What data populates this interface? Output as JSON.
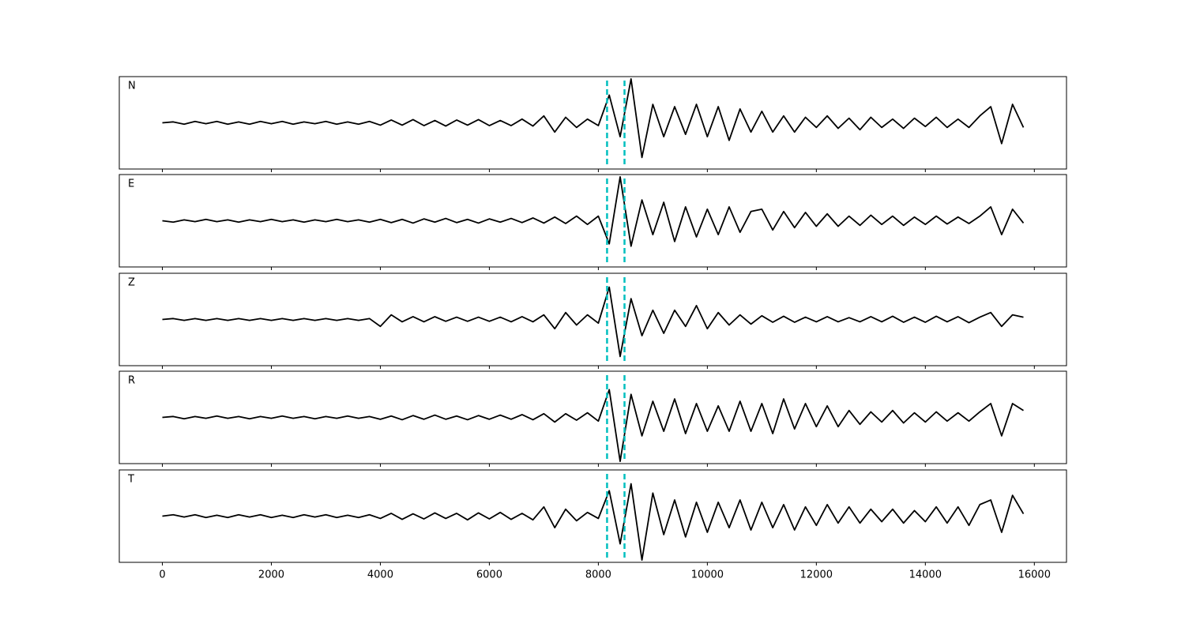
{
  "chart_data": {
    "type": "line",
    "x": [
      0,
      200,
      400,
      600,
      800,
      1000,
      1200,
      1400,
      1600,
      1800,
      2000,
      2200,
      2400,
      2600,
      2800,
      3000,
      3200,
      3400,
      3600,
      3800,
      4000,
      4200,
      4400,
      4600,
      4800,
      5000,
      5200,
      5400,
      5600,
      5800,
      6000,
      6200,
      6400,
      6600,
      6800,
      7000,
      7200,
      7400,
      7600,
      7800,
      8000,
      8200,
      8400,
      8600,
      8800,
      9000,
      9200,
      9400,
      9600,
      9800,
      10000,
      10200,
      10400,
      10600,
      10800,
      11000,
      11200,
      11400,
      11600,
      11800,
      12000,
      12200,
      12400,
      12600,
      12800,
      13000,
      13200,
      13400,
      13600,
      13800,
      14000,
      14200,
      14400,
      14600,
      14800,
      15000,
      15200,
      15400,
      15600,
      15800
    ],
    "series": [
      {
        "name": "N",
        "color": "#000000",
        "values": [
          0,
          0.02,
          -0.03,
          0.03,
          -0.02,
          0.03,
          -0.03,
          0.02,
          -0.03,
          0.03,
          -0.02,
          0.03,
          -0.03,
          0.02,
          -0.02,
          0.03,
          -0.03,
          0.02,
          -0.03,
          0.03,
          -0.05,
          0.06,
          -0.05,
          0.07,
          -0.06,
          0.05,
          -0.07,
          0.06,
          -0.05,
          0.07,
          -0.06,
          0.05,
          -0.06,
          0.08,
          -0.07,
          0.15,
          -0.2,
          0.12,
          -0.1,
          0.08,
          -0.06,
          0.6,
          -0.3,
          0.95,
          -0.75,
          0.4,
          -0.3,
          0.35,
          -0.25,
          0.4,
          -0.3,
          0.35,
          -0.38,
          0.3,
          -0.2,
          0.25,
          -0.2,
          0.15,
          -0.2,
          0.12,
          -0.1,
          0.15,
          -0.12,
          0.1,
          -0.15,
          0.12,
          -0.1,
          0.08,
          -0.12,
          0.1,
          -0.08,
          0.12,
          -0.1,
          0.08,
          -0.1,
          0.15,
          0.35,
          -0.45,
          0.4,
          -0.1
        ]
      },
      {
        "name": "E",
        "color": "#000000",
        "values": [
          0,
          -0.03,
          0.02,
          -0.02,
          0.03,
          -0.02,
          0.02,
          -0.03,
          0.02,
          -0.02,
          0.03,
          -0.02,
          0.02,
          -0.03,
          0.02,
          -0.02,
          0.03,
          -0.02,
          0.02,
          -0.03,
          0.03,
          -0.04,
          0.03,
          -0.05,
          0.04,
          -0.03,
          0.05,
          -0.04,
          0.03,
          -0.05,
          0.04,
          -0.03,
          0.05,
          -0.04,
          0.06,
          -0.05,
          0.08,
          -0.06,
          0.1,
          -0.08,
          0.1,
          -0.5,
          0.95,
          -0.55,
          0.45,
          -0.3,
          0.4,
          -0.45,
          0.3,
          -0.35,
          0.25,
          -0.3,
          0.3,
          -0.25,
          0.2,
          0.25,
          -0.2,
          0.2,
          -0.15,
          0.18,
          -0.12,
          0.15,
          -0.12,
          0.1,
          -0.1,
          0.12,
          -0.08,
          0.1,
          -0.1,
          0.08,
          -0.08,
          0.1,
          -0.07,
          0.08,
          -0.06,
          0.1,
          0.3,
          -0.3,
          0.25,
          -0.05
        ]
      },
      {
        "name": "Z",
        "color": "#000000",
        "values": [
          0,
          0.02,
          -0.02,
          0.02,
          -0.02,
          0.02,
          -0.02,
          0.02,
          -0.02,
          0.02,
          -0.02,
          0.02,
          -0.02,
          0.02,
          -0.02,
          0.02,
          -0.02,
          0.02,
          -0.02,
          0.02,
          -0.15,
          0.1,
          -0.05,
          0.06,
          -0.05,
          0.06,
          -0.04,
          0.05,
          -0.04,
          0.05,
          -0.04,
          0.05,
          -0.05,
          0.06,
          -0.05,
          0.1,
          -0.2,
          0.15,
          -0.12,
          0.1,
          -0.08,
          0.7,
          -0.8,
          0.45,
          -0.35,
          0.2,
          -0.3,
          0.2,
          -0.15,
          0.3,
          -0.2,
          0.15,
          -0.12,
          0.1,
          -0.1,
          0.08,
          -0.06,
          0.07,
          -0.06,
          0.05,
          -0.05,
          0.06,
          -0.05,
          0.04,
          -0.05,
          0.06,
          -0.05,
          0.07,
          -0.06,
          0.05,
          -0.06,
          0.07,
          -0.05,
          0.06,
          -0.07,
          0.05,
          0.15,
          -0.15,
          0.1,
          0.05
        ]
      },
      {
        "name": "R",
        "color": "#000000",
        "values": [
          0,
          0.02,
          -0.03,
          0.02,
          -0.02,
          0.03,
          -0.02,
          0.02,
          -0.03,
          0.02,
          -0.02,
          0.03,
          -0.02,
          0.02,
          -0.03,
          0.02,
          -0.02,
          0.03,
          -0.02,
          0.02,
          -0.04,
          0.03,
          -0.05,
          0.04,
          -0.04,
          0.05,
          -0.04,
          0.03,
          -0.05,
          0.04,
          -0.04,
          0.05,
          -0.04,
          0.06,
          -0.05,
          0.08,
          -0.1,
          0.08,
          -0.06,
          0.1,
          -0.08,
          0.6,
          -0.95,
          0.5,
          -0.4,
          0.35,
          -0.3,
          0.4,
          -0.35,
          0.3,
          -0.3,
          0.25,
          -0.3,
          0.35,
          -0.3,
          0.3,
          -0.35,
          0.4,
          -0.25,
          0.3,
          -0.2,
          0.25,
          -0.2,
          0.15,
          -0.15,
          0.12,
          -0.1,
          0.15,
          -0.12,
          0.1,
          -0.1,
          0.12,
          -0.08,
          0.1,
          -0.08,
          0.12,
          0.3,
          -0.4,
          0.3,
          0.15
        ]
      },
      {
        "name": "T",
        "color": "#000000",
        "values": [
          0,
          0.03,
          -0.02,
          0.03,
          -0.03,
          0.02,
          -0.03,
          0.03,
          -0.02,
          0.03,
          -0.03,
          0.02,
          -0.03,
          0.03,
          -0.02,
          0.03,
          -0.03,
          0.02,
          -0.03,
          0.03,
          -0.05,
          0.06,
          -0.07,
          0.05,
          -0.06,
          0.07,
          -0.05,
          0.06,
          -0.08,
          0.07,
          -0.06,
          0.08,
          -0.07,
          0.06,
          -0.08,
          0.2,
          -0.25,
          0.15,
          -0.1,
          0.08,
          -0.05,
          0.55,
          -0.6,
          0.7,
          -0.95,
          0.5,
          -0.4,
          0.35,
          -0.45,
          0.3,
          -0.35,
          0.3,
          -0.25,
          0.35,
          -0.3,
          0.3,
          -0.25,
          0.25,
          -0.3,
          0.2,
          -0.2,
          0.25,
          -0.15,
          0.2,
          -0.15,
          0.15,
          -0.12,
          0.15,
          -0.15,
          0.12,
          -0.12,
          0.2,
          -0.15,
          0.2,
          -0.2,
          0.25,
          0.35,
          -0.35,
          0.45,
          0.05
        ]
      }
    ],
    "xlim": [
      -790,
      16590
    ],
    "xticks": [
      0,
      2000,
      4000,
      6000,
      8000,
      10000,
      12000,
      14000,
      16000
    ],
    "ylim": [
      -1,
      1
    ],
    "vlines": [
      8160,
      8480
    ],
    "vline_color": "#00bfbf"
  }
}
